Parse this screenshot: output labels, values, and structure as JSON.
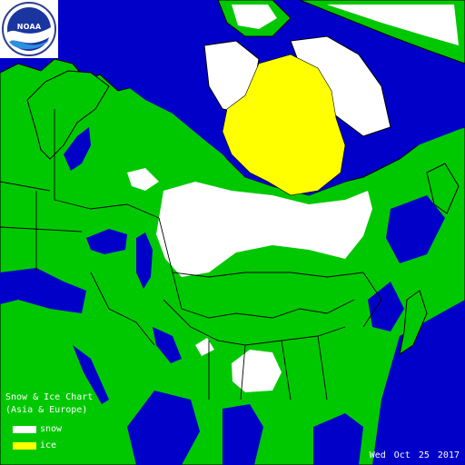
{
  "logo": {
    "text": "NOAA",
    "icon": "noaa-logo-icon"
  },
  "title": {
    "line1": "Snow & Ice Chart",
    "line2": "(Asia & Europe)"
  },
  "legend": [
    {
      "label": "snow",
      "color": "#ffffff"
    },
    {
      "label": "ice",
      "color": "#ffff00"
    }
  ],
  "date": {
    "weekday": "Wed",
    "month": "Oct",
    "day": "25",
    "year": "2017",
    "text": "Wed Oct 25   2017"
  },
  "colors": {
    "ocean": "#0000c8",
    "land": "#00c800",
    "snow": "#ffffff",
    "ice": "#ffff00",
    "border": "#000000"
  }
}
